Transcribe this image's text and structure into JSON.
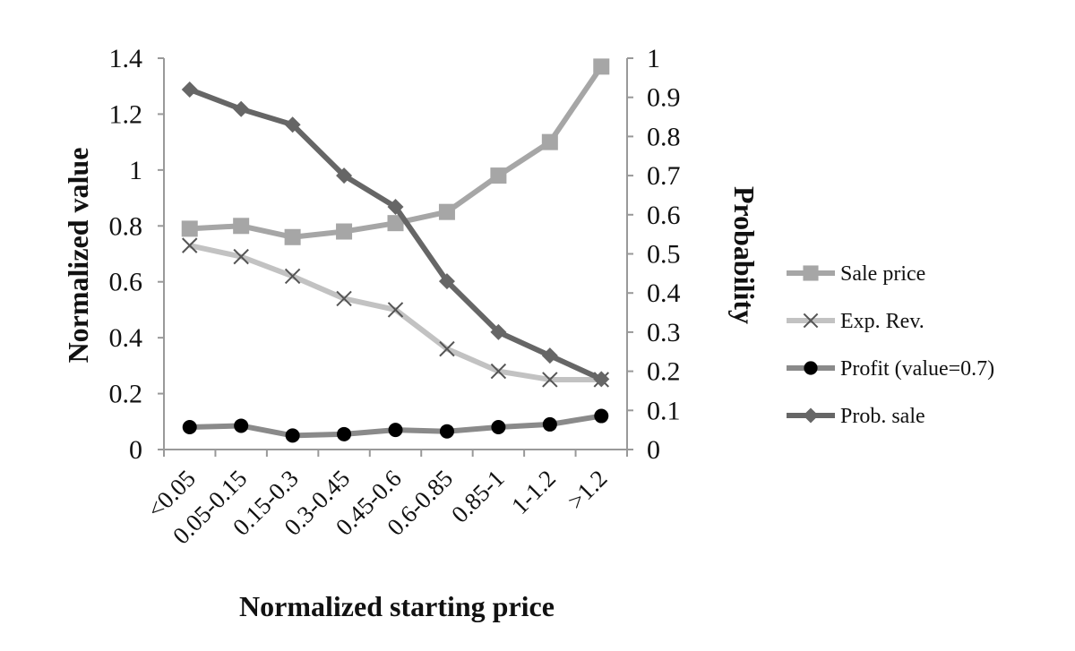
{
  "chart_data": {
    "type": "line",
    "title": "",
    "xlabel": "Normalized starting price",
    "ylabel_left": "Normalized value",
    "ylabel_right": "Probability",
    "categories": [
      "<0.05",
      "0.05-0.15",
      "0.15-0.3",
      "0.3-0.45",
      "0.45-0.6",
      "0.6-0.85",
      "0.85-1",
      "1-1.2",
      ">1.2"
    ],
    "y_left": {
      "min": 0,
      "max": 1.4,
      "ticks": [
        "0",
        "0.2",
        "0.4",
        "0.6",
        "0.8",
        "1",
        "1.2",
        "1.4"
      ],
      "tick_values": [
        0,
        0.2,
        0.4,
        0.6,
        0.8,
        1,
        1.2,
        1.4
      ]
    },
    "y_right": {
      "min": 0,
      "max": 1,
      "ticks": [
        "0",
        "0.1",
        "0.2",
        "0.3",
        "0.4",
        "0.5",
        "0.6",
        "0.7",
        "0.8",
        "0.9",
        "1"
      ],
      "tick_values": [
        0,
        0.1,
        0.2,
        0.3,
        0.4,
        0.5,
        0.6,
        0.7,
        0.8,
        0.9,
        1
      ]
    },
    "grid": false,
    "legend_position": "right",
    "series": [
      {
        "name": "Sale price",
        "axis": "left",
        "marker": "square",
        "color": "#a6a6a6",
        "values": [
          0.79,
          0.8,
          0.76,
          0.78,
          0.81,
          0.85,
          0.98,
          1.1,
          1.37
        ]
      },
      {
        "name": "Exp. Rev.",
        "axis": "left",
        "marker": "x",
        "color": "#c2c2c2",
        "values": [
          0.73,
          0.69,
          0.62,
          0.54,
          0.5,
          0.36,
          0.28,
          0.25,
          0.25
        ]
      },
      {
        "name": "Profit (value=0.7)",
        "axis": "left",
        "marker": "circle",
        "color": "#8a8a8a",
        "values": [
          0.08,
          0.085,
          0.05,
          0.055,
          0.07,
          0.065,
          0.08,
          0.09,
          0.12
        ]
      },
      {
        "name": "Prob. sale",
        "axis": "right",
        "marker": "diamond",
        "color": "#666666",
        "values": [
          0.92,
          0.87,
          0.83,
          0.7,
          0.62,
          0.43,
          0.3,
          0.24,
          0.18
        ]
      }
    ]
  }
}
